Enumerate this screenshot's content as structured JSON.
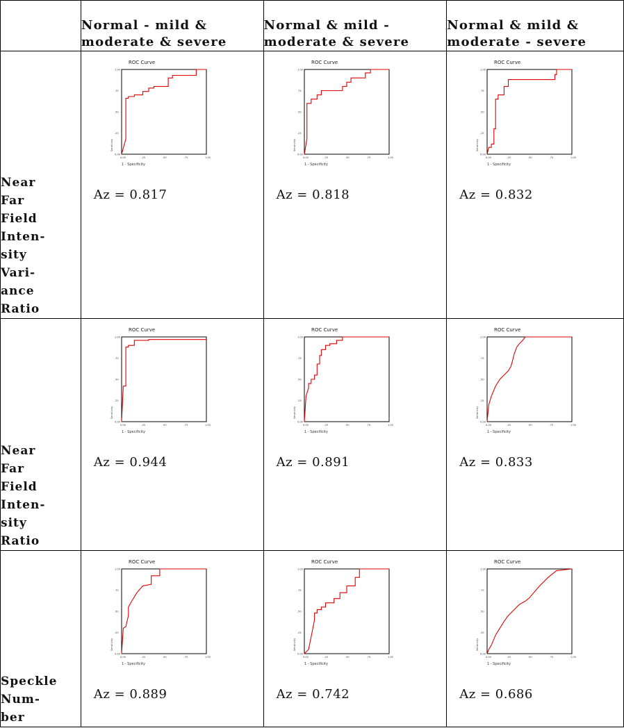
{
  "headers": [
    "",
    "Normal - mild & moderate & severe",
    "Normal & mild - moderate & severe",
    "Normal & mild & moderate - severe"
  ],
  "header_lines": [
    [
      "Normal - mild &",
      "moderate & severe"
    ],
    [
      "Normal & mild -",
      "moderate & severe"
    ],
    [
      "Normal & mild &",
      "moderate - severe"
    ]
  ],
  "rows": [
    {
      "label_lines": [
        "Near",
        "Far",
        "Field",
        "Inten-",
        "sity",
        "Vari-",
        "ance",
        "Ratio"
      ],
      "az": [
        "Az = 0.817",
        "Az = 0.818",
        "Az = 0.832"
      ]
    },
    {
      "label_lines": [
        "Near",
        "Far",
        "Field",
        "Inten-",
        "sity",
        "Ratio"
      ],
      "az": [
        "Az = 0.944",
        "Az = 0.891",
        "Az = 0.833"
      ]
    },
    {
      "label_lines": [
        "Speckle",
        "Num-",
        "ber"
      ],
      "az": [
        "Az = 0.889",
        "Az = 0.742",
        "Az = 0.686"
      ]
    }
  ],
  "plot_text": {
    "title": "ROC Curve",
    "xlabel": "1 - Specificity",
    "ylabel": "Sensitivity",
    "ticks": [
      "0.00",
      ".25",
      ".50",
      ".75",
      "1.00"
    ]
  },
  "chart_data": [
    {
      "type": "line",
      "title": "ROC Curve",
      "xlabel": "1 - Specificity",
      "ylabel": "Sensitivity",
      "xlim": [
        0,
        1
      ],
      "ylim": [
        0,
        1
      ],
      "color": "#e00000",
      "x": [
        0,
        0.05,
        0.05,
        0.08,
        0.08,
        0.15,
        0.15,
        0.25,
        0.25,
        0.32,
        0.32,
        0.38,
        0.38,
        0.55,
        0.55,
        0.6,
        0.6,
        0.88,
        0.88,
        1.0
      ],
      "y": [
        0,
        0.18,
        0.66,
        0.66,
        0.68,
        0.68,
        0.7,
        0.7,
        0.74,
        0.74,
        0.78,
        0.78,
        0.8,
        0.8,
        0.9,
        0.9,
        0.93,
        0.93,
        1.0,
        1.0
      ]
    },
    {
      "type": "line",
      "title": "ROC Curve",
      "xlabel": "1 - Specificity",
      "ylabel": "Sensitivity",
      "xlim": [
        0,
        1
      ],
      "ylim": [
        0,
        1
      ],
      "color": "#e00000",
      "x": [
        0,
        0.03,
        0.03,
        0.08,
        0.08,
        0.15,
        0.15,
        0.2,
        0.2,
        0.45,
        0.45,
        0.5,
        0.5,
        0.55,
        0.55,
        0.72,
        0.72,
        0.78,
        0.78,
        1.0
      ],
      "y": [
        0,
        0.18,
        0.6,
        0.6,
        0.65,
        0.65,
        0.7,
        0.7,
        0.75,
        0.75,
        0.8,
        0.8,
        0.85,
        0.85,
        0.9,
        0.9,
        0.96,
        0.96,
        1.0,
        1.0
      ]
    },
    {
      "type": "line",
      "title": "ROC Curve",
      "xlabel": "1 - Specificity",
      "ylabel": "Sensitivity",
      "xlim": [
        0,
        1
      ],
      "ylim": [
        0,
        1
      ],
      "color": "#e00000",
      "x": [
        0,
        0.02,
        0.05,
        0.05,
        0.08,
        0.08,
        0.1,
        0.1,
        0.13,
        0.13,
        0.2,
        0.2,
        0.25,
        0.25,
        0.8,
        0.8,
        0.82,
        0.82,
        1.0
      ],
      "y": [
        0,
        0.08,
        0.08,
        0.12,
        0.12,
        0.3,
        0.3,
        0.65,
        0.65,
        0.7,
        0.7,
        0.8,
        0.8,
        0.88,
        0.88,
        0.94,
        0.94,
        1.0,
        1.0
      ]
    },
    {
      "type": "line",
      "title": "ROC Curve",
      "xlabel": "1 - Specificity",
      "ylabel": "Sensitivity",
      "xlim": [
        0,
        1
      ],
      "ylim": [
        0,
        1
      ],
      "color": "#e00000",
      "x": [
        0,
        0.02,
        0.02,
        0.05,
        0.05,
        0.08,
        0.08,
        0.15,
        0.15,
        0.32,
        0.32,
        1.0
      ],
      "y": [
        0,
        0.42,
        0.42,
        0.42,
        0.88,
        0.88,
        0.9,
        0.9,
        0.96,
        0.96,
        0.97,
        0.97
      ]
    },
    {
      "type": "line",
      "title": "ROC Curve",
      "xlabel": "1 - Specificity",
      "ylabel": "Sensitivity",
      "xlim": [
        0,
        1
      ],
      "ylim": [
        0,
        1
      ],
      "color": "#e00000",
      "x": [
        0,
        0.02,
        0.02,
        0.05,
        0.05,
        0.08,
        0.08,
        0.12,
        0.12,
        0.15,
        0.15,
        0.18,
        0.18,
        0.2,
        0.2,
        0.25,
        0.25,
        0.3,
        0.3,
        0.38,
        0.38,
        0.45,
        0.45,
        1.0
      ],
      "y": [
        0,
        0.3,
        0.3,
        0.4,
        0.45,
        0.45,
        0.5,
        0.5,
        0.55,
        0.55,
        0.68,
        0.68,
        0.78,
        0.78,
        0.85,
        0.85,
        0.9,
        0.9,
        0.92,
        0.92,
        0.96,
        0.96,
        1.0,
        1.0
      ]
    },
    {
      "type": "line",
      "title": "ROC Curve",
      "xlabel": "1 - Specificity",
      "ylabel": "Sensitivity",
      "xlim": [
        0,
        1
      ],
      "ylim": [
        0,
        1
      ],
      "color": "#e00000",
      "x": [
        0,
        0.02,
        0.02,
        0.05,
        0.05,
        0.1,
        0.1,
        0.15,
        0.15,
        0.2,
        0.2,
        0.25,
        0.25,
        0.28,
        0.28,
        0.3,
        0.3,
        0.32,
        0.32,
        0.35,
        0.35,
        0.38,
        0.38,
        0.42,
        0.42,
        0.45,
        0.45,
        1.0
      ],
      "y": [
        0,
        0.2,
        0.2,
        0.3,
        0.3,
        0.42,
        0.42,
        0.5,
        0.5,
        0.55,
        0.55,
        0.6,
        0.6,
        0.65,
        0.65,
        0.72,
        0.72,
        0.8,
        0.8,
        0.88,
        0.88,
        0.92,
        0.92,
        0.96,
        0.96,
        1.0,
        1.0,
        1.0
      ]
    },
    {
      "type": "line",
      "title": "ROC Curve",
      "xlabel": "1 - Specificity",
      "ylabel": "Sensitivity",
      "xlim": [
        0,
        1
      ],
      "ylim": [
        0,
        1
      ],
      "color": "#e00000",
      "x": [
        0,
        0.02,
        0.02,
        0.05,
        0.05,
        0.08,
        0.08,
        0.12,
        0.12,
        0.18,
        0.18,
        0.25,
        0.25,
        0.35,
        0.35,
        0.45,
        0.45,
        1.0
      ],
      "y": [
        0,
        0.3,
        0.3,
        0.32,
        0.32,
        0.45,
        0.55,
        0.62,
        0.62,
        0.72,
        0.72,
        0.8,
        0.8,
        0.82,
        0.92,
        0.92,
        1.0,
        1.0
      ]
    },
    {
      "type": "line",
      "title": "ROC Curve",
      "xlabel": "1 - Specificity",
      "ylabel": "Sensitivity",
      "xlim": [
        0,
        1
      ],
      "ylim": [
        0,
        1
      ],
      "color": "#e00000",
      "x": [
        0,
        0.05,
        0.05,
        0.08,
        0.08,
        0.12,
        0.12,
        0.15,
        0.15,
        0.2,
        0.2,
        0.25,
        0.25,
        0.35,
        0.35,
        0.42,
        0.42,
        0.5,
        0.5,
        0.6,
        0.6,
        0.65,
        0.65,
        0.72,
        0.72,
        1.0
      ],
      "y": [
        0,
        0.05,
        0.05,
        0.2,
        0.2,
        0.4,
        0.48,
        0.48,
        0.52,
        0.52,
        0.55,
        0.55,
        0.6,
        0.6,
        0.65,
        0.65,
        0.72,
        0.72,
        0.8,
        0.8,
        0.9,
        0.9,
        1.0,
        1.0,
        1.0,
        1.0
      ]
    },
    {
      "type": "line",
      "title": "ROC Curve",
      "xlabel": "1 - Specificity",
      "ylabel": "Sensitivity",
      "xlim": [
        0,
        1
      ],
      "ylim": [
        0,
        1
      ],
      "color": "#e00000",
      "x": [
        0,
        0.02,
        0.02,
        0.05,
        0.05,
        0.1,
        0.1,
        0.15,
        0.15,
        0.2,
        0.2,
        0.25,
        0.25,
        0.3,
        0.3,
        0.38,
        0.38,
        0.45,
        0.45,
        0.5,
        0.5,
        0.55,
        0.55,
        0.62,
        0.62,
        0.72,
        0.72,
        0.82,
        0.82,
        1.0
      ],
      "y": [
        0,
        0.05,
        0.05,
        0.1,
        0.1,
        0.22,
        0.22,
        0.3,
        0.3,
        0.38,
        0.38,
        0.45,
        0.45,
        0.5,
        0.5,
        0.58,
        0.58,
        0.62,
        0.62,
        0.66,
        0.66,
        0.72,
        0.72,
        0.8,
        0.8,
        0.9,
        0.9,
        0.98,
        0.98,
        1.0
      ]
    }
  ]
}
